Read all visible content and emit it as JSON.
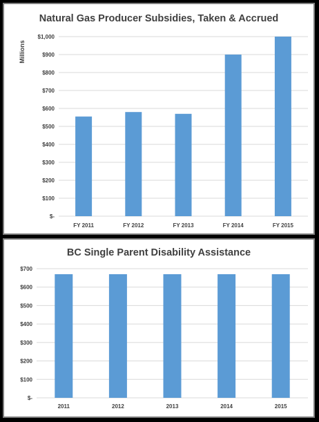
{
  "colors": {
    "bar": "#5B9BD5",
    "grid": "#D9D9D9",
    "text": "#404040"
  },
  "chart_data": [
    {
      "type": "bar",
      "title": "Natural Gas Producer Subsidies, Taken & Accrued",
      "ylabel": "Millions",
      "xlabel": "",
      "categories": [
        "FY 2011",
        "FY 2012",
        "FY 2013",
        "FY 2014",
        "FY 2015"
      ],
      "values": [
        555,
        580,
        570,
        900,
        1000
      ],
      "ylim": [
        0,
        1000
      ],
      "yticks": [
        0,
        100,
        200,
        300,
        400,
        500,
        600,
        700,
        800,
        900,
        1000
      ],
      "ytick_labels": [
        "$-",
        "$100",
        "$200",
        "$300",
        "$400",
        "$500",
        "$600",
        "$700",
        "$800",
        "$900",
        "$1,000"
      ],
      "grid": true,
      "legend": "none"
    },
    {
      "type": "bar",
      "title": "BC Single Parent Disability Assistance",
      "ylabel": "",
      "xlabel": "",
      "categories": [
        "2011",
        "2012",
        "2013",
        "2014",
        "2015"
      ],
      "values": [
        670,
        670,
        670,
        670,
        670
      ],
      "ylim": [
        0,
        700
      ],
      "yticks": [
        0,
        100,
        200,
        300,
        400,
        500,
        600,
        700
      ],
      "ytick_labels": [
        "$-",
        "$100",
        "$200",
        "$300",
        "$400",
        "$500",
        "$600",
        "$700"
      ],
      "grid": true,
      "legend": "none"
    }
  ]
}
